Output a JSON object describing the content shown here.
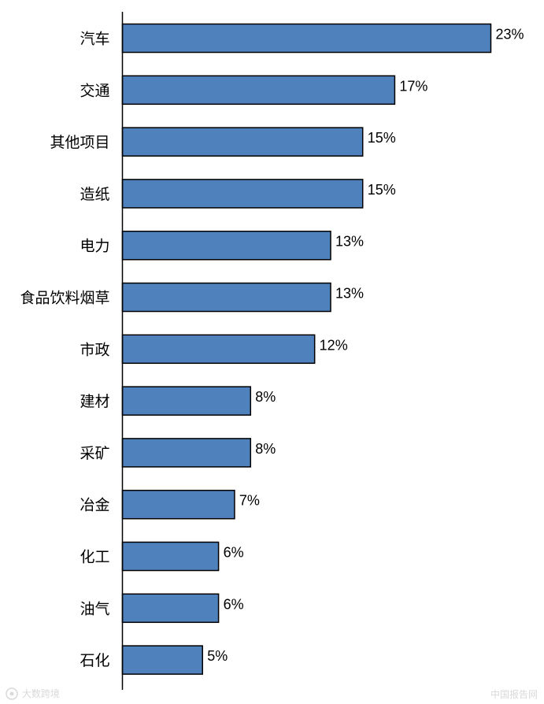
{
  "chart_data": {
    "type": "bar",
    "orientation": "horizontal",
    "categories": [
      "汽车",
      "交通",
      "其他项目",
      "造纸",
      "电力",
      "食品饮料烟草",
      "市政",
      "建材",
      "采矿",
      "冶金",
      "化工",
      "油气",
      "石化"
    ],
    "values": [
      23,
      17,
      15,
      15,
      13,
      13,
      12,
      8,
      8,
      7,
      6,
      6,
      5
    ],
    "value_labels": [
      "23%",
      "17%",
      "15%",
      "15%",
      "13%",
      "13%",
      "12%",
      "8%",
      "8%",
      "7%",
      "6%",
      "6%",
      "5%"
    ],
    "xlim": [
      0,
      23
    ],
    "bar_color": "#4F81BD",
    "grid": false,
    "legend": "none"
  },
  "watermark": {
    "left_text": "大数跨境",
    "right_text": "中国报告网"
  }
}
